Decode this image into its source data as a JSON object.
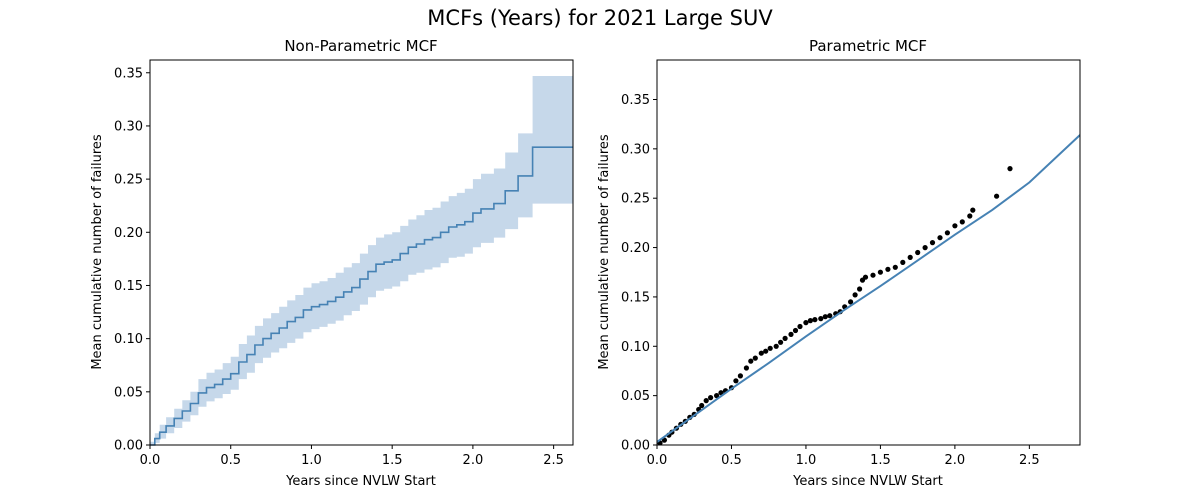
{
  "figure": {
    "title": "MCFs (Years) for 2021 Large SUV"
  },
  "colors": {
    "line": "#4682b4",
    "ci_band": "#c6d8ea",
    "points": "#000000"
  },
  "chart_data": [
    {
      "type": "line",
      "title": "Non-Parametric MCF",
      "xlabel": "Years since NVLW Start",
      "ylabel": "Mean cumulative number of failures",
      "xlim": [
        0,
        2.62
      ],
      "ylim": [
        0,
        0.362
      ],
      "xticks": [
        "0.0",
        "0.5",
        "1.0",
        "1.5",
        "2.0",
        "2.5"
      ],
      "yticks": [
        "0.00",
        "0.05",
        "0.10",
        "0.15",
        "0.20",
        "0.25",
        "0.30",
        "0.35"
      ],
      "grid": false,
      "step": true,
      "series": [
        {
          "x": [
            0,
            0.03,
            0.06,
            0.1,
            0.15,
            0.2,
            0.25,
            0.3,
            0.35,
            0.4,
            0.45,
            0.5,
            0.55,
            0.6,
            0.65,
            0.7,
            0.75,
            0.8,
            0.85,
            0.9,
            0.95,
            1.0,
            1.05,
            1.1,
            1.15,
            1.2,
            1.25,
            1.3,
            1.35,
            1.4,
            1.45,
            1.5,
            1.55,
            1.6,
            1.65,
            1.7,
            1.75,
            1.8,
            1.85,
            1.9,
            1.95,
            2.0,
            2.05,
            2.13,
            2.2,
            2.28,
            2.37,
            2.62
          ],
          "y": [
            0,
            0.006,
            0.012,
            0.018,
            0.025,
            0.032,
            0.039,
            0.049,
            0.054,
            0.057,
            0.062,
            0.067,
            0.078,
            0.085,
            0.094,
            0.1,
            0.105,
            0.11,
            0.116,
            0.12,
            0.127,
            0.13,
            0.132,
            0.135,
            0.139,
            0.144,
            0.148,
            0.156,
            0.163,
            0.17,
            0.172,
            0.174,
            0.18,
            0.186,
            0.189,
            0.193,
            0.195,
            0.2,
            0.205,
            0.207,
            0.21,
            0.218,
            0.222,
            0.227,
            0.239,
            0.253,
            0.28,
            0.28
          ],
          "lower": [
            0,
            0.002,
            0.006,
            0.011,
            0.016,
            0.022,
            0.028,
            0.036,
            0.041,
            0.044,
            0.048,
            0.052,
            0.062,
            0.068,
            0.077,
            0.082,
            0.087,
            0.091,
            0.096,
            0.1,
            0.106,
            0.109,
            0.111,
            0.114,
            0.117,
            0.122,
            0.126,
            0.132,
            0.139,
            0.145,
            0.147,
            0.149,
            0.154,
            0.16,
            0.162,
            0.165,
            0.167,
            0.171,
            0.176,
            0.177,
            0.18,
            0.186,
            0.19,
            0.195,
            0.203,
            0.214,
            0.227,
            0.227
          ],
          "upper": [
            0.003,
            0.011,
            0.019,
            0.026,
            0.034,
            0.042,
            0.05,
            0.062,
            0.068,
            0.071,
            0.077,
            0.083,
            0.095,
            0.103,
            0.112,
            0.119,
            0.124,
            0.13,
            0.136,
            0.141,
            0.148,
            0.152,
            0.154,
            0.157,
            0.162,
            0.167,
            0.171,
            0.18,
            0.188,
            0.195,
            0.198,
            0.2,
            0.206,
            0.212,
            0.216,
            0.221,
            0.223,
            0.229,
            0.234,
            0.237,
            0.241,
            0.25,
            0.255,
            0.26,
            0.275,
            0.293,
            0.347,
            0.347
          ]
        }
      ]
    },
    {
      "type": "scatter",
      "title": "Parametric MCF",
      "xlabel": "Years since NVLW Start",
      "ylabel": "Mean cumulative number of failures",
      "xlim": [
        0,
        2.84
      ],
      "ylim": [
        0,
        0.39
      ],
      "xticks": [
        "0.0",
        "0.5",
        "1.0",
        "1.5",
        "2.0",
        "2.5"
      ],
      "yticks": [
        "0.00",
        "0.05",
        "0.10",
        "0.15",
        "0.20",
        "0.25",
        "0.30",
        "0.35"
      ],
      "grid": false,
      "fit_line": {
        "x": [
          0,
          0.25,
          0.5,
          0.75,
          1.0,
          1.25,
          1.5,
          1.75,
          2.0,
          2.25,
          2.5,
          2.84
        ],
        "y": [
          0.003,
          0.03,
          0.057,
          0.083,
          0.11,
          0.136,
          0.161,
          0.187,
          0.213,
          0.238,
          0.266,
          0.314
        ]
      },
      "points": {
        "x": [
          0.02,
          0.05,
          0.08,
          0.1,
          0.13,
          0.16,
          0.19,
          0.22,
          0.25,
          0.28,
          0.3,
          0.33,
          0.36,
          0.4,
          0.43,
          0.46,
          0.5,
          0.53,
          0.56,
          0.6,
          0.63,
          0.66,
          0.7,
          0.73,
          0.76,
          0.8,
          0.83,
          0.86,
          0.9,
          0.93,
          0.96,
          1.0,
          1.03,
          1.06,
          1.1,
          1.13,
          1.16,
          1.2,
          1.23,
          1.26,
          1.3,
          1.33,
          1.36,
          1.38,
          1.4,
          1.45,
          1.5,
          1.55,
          1.6,
          1.65,
          1.7,
          1.75,
          1.8,
          1.85,
          1.9,
          1.95,
          2.0,
          2.05,
          2.1,
          2.12,
          2.28,
          2.37
        ],
        "y": [
          0.002,
          0.005,
          0.01,
          0.013,
          0.017,
          0.021,
          0.024,
          0.028,
          0.031,
          0.036,
          0.04,
          0.045,
          0.048,
          0.05,
          0.053,
          0.055,
          0.058,
          0.065,
          0.07,
          0.078,
          0.085,
          0.088,
          0.093,
          0.095,
          0.098,
          0.1,
          0.104,
          0.108,
          0.112,
          0.116,
          0.12,
          0.124,
          0.126,
          0.127,
          0.128,
          0.13,
          0.131,
          0.133,
          0.135,
          0.14,
          0.145,
          0.152,
          0.158,
          0.167,
          0.17,
          0.172,
          0.175,
          0.178,
          0.18,
          0.185,
          0.19,
          0.195,
          0.2,
          0.205,
          0.21,
          0.215,
          0.222,
          0.226,
          0.232,
          0.238,
          0.252,
          0.28
        ]
      }
    }
  ]
}
